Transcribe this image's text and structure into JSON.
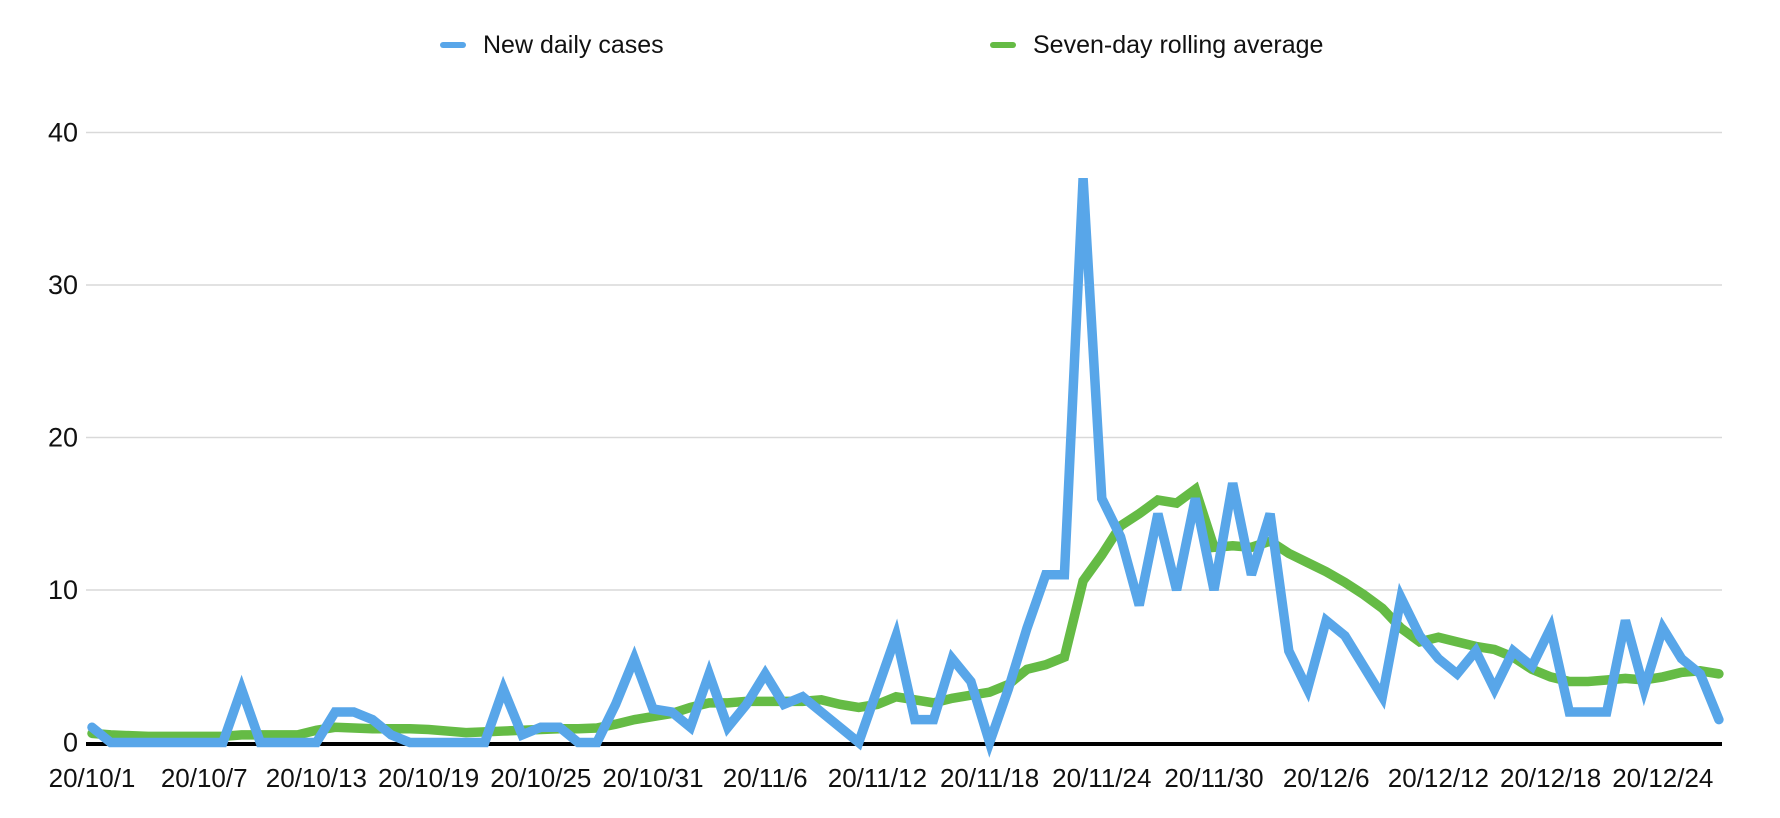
{
  "chart_data": {
    "type": "line",
    "title": "",
    "legend_position": "top",
    "grid": true,
    "ylim": [
      0,
      44
    ],
    "yticks": [
      0,
      10,
      20,
      30,
      40
    ],
    "x_tick_step": 6,
    "x_tick_labels": [
      "20/10/1",
      "20/10/7",
      "20/10/13",
      "20/10/19",
      "20/10/25",
      "20/10/31",
      "20/11/6",
      "20/11/12",
      "20/11/18",
      "20/11/24",
      "20/11/30",
      "20/12/6",
      "20/12/12",
      "20/12/18",
      "20/12/24"
    ],
    "x_dates": [
      "20/10/1",
      "20/10/2",
      "20/10/3",
      "20/10/4",
      "20/10/5",
      "20/10/6",
      "20/10/7",
      "20/10/8",
      "20/10/9",
      "20/10/10",
      "20/10/11",
      "20/10/12",
      "20/10/13",
      "20/10/14",
      "20/10/15",
      "20/10/16",
      "20/10/17",
      "20/10/18",
      "20/10/19",
      "20/10/20",
      "20/10/21",
      "20/10/22",
      "20/10/23",
      "20/10/24",
      "20/10/25",
      "20/10/26",
      "20/10/27",
      "20/10/28",
      "20/10/29",
      "20/10/30",
      "20/10/31",
      "20/11/1",
      "20/11/2",
      "20/11/3",
      "20/11/4",
      "20/11/5",
      "20/11/6",
      "20/11/7",
      "20/11/8",
      "20/11/9",
      "20/11/10",
      "20/11/11",
      "20/11/12",
      "20/11/13",
      "20/11/14",
      "20/11/15",
      "20/11/16",
      "20/11/17",
      "20/11/18",
      "20/11/19",
      "20/11/20",
      "20/11/21",
      "20/11/22",
      "20/11/23",
      "20/11/24",
      "20/11/25",
      "20/11/26",
      "20/11/27",
      "20/11/28",
      "20/11/29",
      "20/11/30",
      "20/12/1",
      "20/12/2",
      "20/12/3",
      "20/12/4",
      "20/12/5",
      "20/12/6",
      "20/12/7",
      "20/12/8",
      "20/12/9",
      "20/12/10",
      "20/12/11",
      "20/12/12",
      "20/12/13",
      "20/12/14",
      "20/12/15",
      "20/12/16",
      "20/12/17",
      "20/12/18",
      "20/12/19",
      "20/12/20",
      "20/12/21",
      "20/12/22",
      "20/12/23",
      "20/12/24",
      "20/12/25",
      "20/12/26",
      "20/12/27"
    ],
    "series": [
      {
        "name": "New daily cases",
        "color": "#58A6E9",
        "values": [
          1,
          0,
          0,
          0,
          0,
          0,
          0,
          0,
          3.5,
          0,
          0,
          0,
          0,
          2,
          2,
          1.5,
          0.5,
          0,
          0,
          0,
          0,
          0,
          3.5,
          0.5,
          1,
          1,
          0,
          0,
          2.5,
          5.5,
          2.2,
          2,
          1,
          4.5,
          1,
          2.5,
          4.5,
          2.5,
          3,
          2,
          1,
          0,
          3.5,
          7,
          1.5,
          1.5,
          5.5,
          4,
          0,
          3.5,
          7.5,
          11,
          11,
          37,
          16,
          13.5,
          9,
          15,
          10,
          16,
          10,
          17,
          11,
          15,
          6,
          3.5,
          8,
          7,
          5,
          3,
          9.5,
          7,
          5.5,
          4.5,
          6,
          3.5,
          6,
          5,
          7.5,
          2,
          2,
          2,
          8,
          3.5,
          7.5,
          5.5,
          4.5,
          1.5
        ]
      },
      {
        "name": "Seven-day rolling average",
        "color": "#65BB45",
        "values": [
          0.6,
          0.5,
          0.45,
          0.4,
          0.4,
          0.4,
          0.4,
          0.4,
          0.5,
          0.5,
          0.5,
          0.5,
          0.8,
          1.0,
          0.95,
          0.9,
          0.9,
          0.9,
          0.85,
          0.75,
          0.65,
          0.7,
          0.75,
          0.8,
          0.85,
          0.9,
          0.9,
          0.95,
          1.2,
          1.5,
          1.7,
          1.9,
          2.3,
          2.6,
          2.6,
          2.7,
          2.7,
          2.7,
          2.7,
          2.8,
          2.5,
          2.3,
          2.5,
          3.0,
          2.8,
          2.6,
          2.9,
          3.1,
          3.3,
          3.8,
          4.8,
          5.1,
          5.6,
          10.6,
          12.3,
          14.2,
          15.0,
          15.9,
          15.7,
          16.6,
          12.8,
          12.9,
          12.8,
          13.2,
          12.4,
          11.8,
          11.2,
          10.5,
          9.7,
          8.8,
          7.5,
          6.6,
          6.9,
          6.6,
          6.3,
          6.1,
          5.6,
          4.8,
          4.3,
          4.0,
          4.0,
          4.1,
          4.2,
          4.1,
          4.3,
          4.6,
          4.7,
          4.5
        ]
      }
    ]
  },
  "colors": {
    "gridline": "#D9D9D9",
    "axis": "#000000",
    "text": "#111111",
    "background": "#FFFFFF"
  }
}
